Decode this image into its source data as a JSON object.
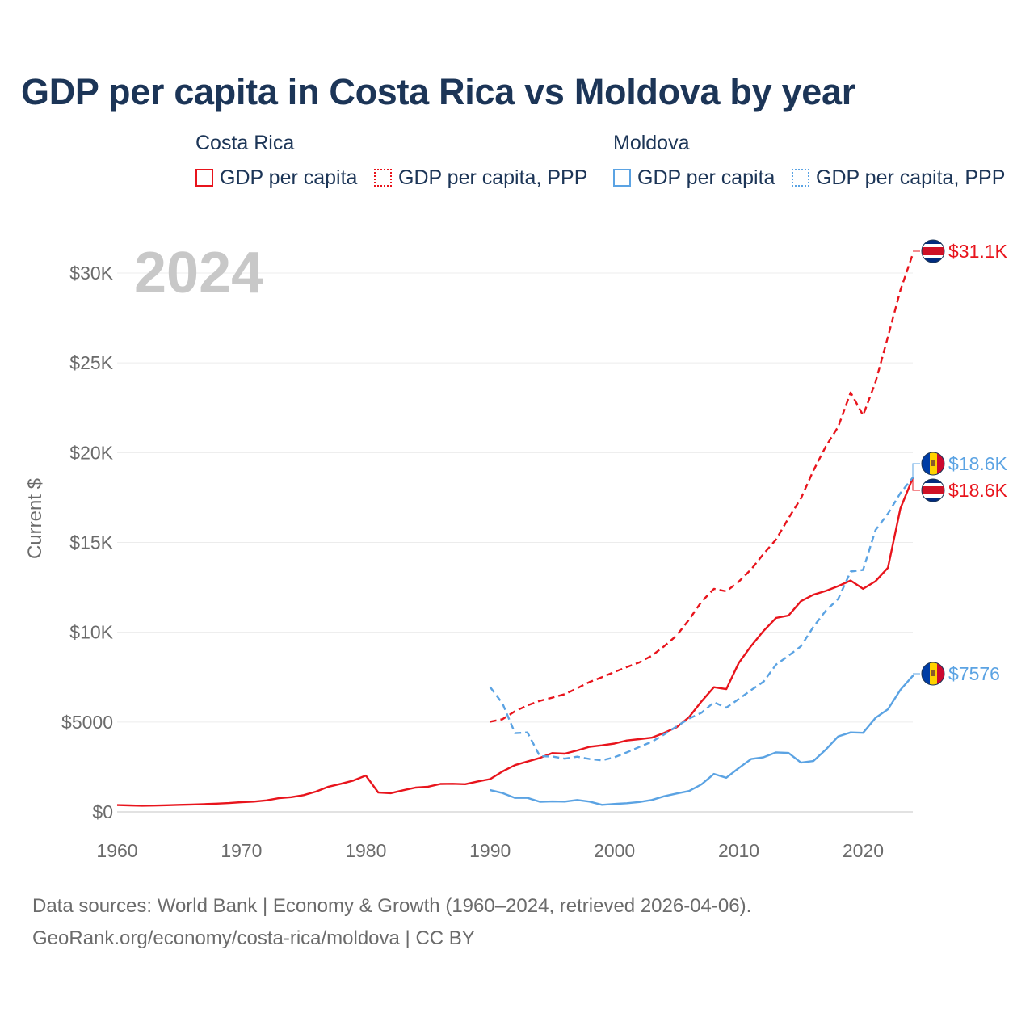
{
  "title": "GDP per capita in Costa Rica vs Moldova by year",
  "legend": {
    "groups": [
      {
        "name": "Costa Rica",
        "items": [
          "GDP per capita",
          "GDP per capita, PPP"
        ]
      },
      {
        "name": "Moldova",
        "items": [
          "GDP per capita",
          "GDP per capita, PPP"
        ]
      }
    ]
  },
  "year_watermark": "2024",
  "footer": {
    "line1": "Data sources: World Bank | Economy & Growth (1960–2024, retrieved 2026-04-06).",
    "line2": "GeoRank.org/economy/costa-rica/moldova | CC BY"
  },
  "colors": {
    "costa_rica": "#e8141c",
    "moldova": "#5ba3e3",
    "title": "#1c3557",
    "axis_text": "#6b6b6b",
    "watermark": "#c8c8c8"
  },
  "chart_data": {
    "type": "line",
    "title": "GDP per capita in Costa Rica vs Moldova by year",
    "xlabel": "",
    "ylabel": "Current $",
    "xlim": [
      1960,
      2024
    ],
    "ylim": [
      0,
      32000
    ],
    "x_ticks": [
      1960,
      1970,
      1980,
      1990,
      2000,
      2010,
      2020
    ],
    "y_ticks": [
      0,
      5000,
      10000,
      15000,
      20000,
      25000,
      30000
    ],
    "y_tick_labels": [
      "$0",
      "$5000",
      "$10K",
      "$15K",
      "$20K",
      "$25K",
      "$30K"
    ],
    "series": [
      {
        "name": "Costa Rica GDP per capita",
        "country": "Costa Rica",
        "style": "solid",
        "color": "#e8141c",
        "end_label": "$18.6K",
        "points": [
          [
            1960,
            380
          ],
          [
            1961,
            360
          ],
          [
            1962,
            340
          ],
          [
            1963,
            350
          ],
          [
            1964,
            370
          ],
          [
            1965,
            390
          ],
          [
            1966,
            410
          ],
          [
            1967,
            430
          ],
          [
            1968,
            460
          ],
          [
            1969,
            490
          ],
          [
            1970,
            540
          ],
          [
            1971,
            570
          ],
          [
            1972,
            640
          ],
          [
            1973,
            760
          ],
          [
            1974,
            820
          ],
          [
            1975,
            930
          ],
          [
            1976,
            1130
          ],
          [
            1977,
            1400
          ],
          [
            1978,
            1560
          ],
          [
            1979,
            1740
          ],
          [
            1980,
            2020
          ],
          [
            1981,
            1080
          ],
          [
            1982,
            1040
          ],
          [
            1983,
            1200
          ],
          [
            1984,
            1350
          ],
          [
            1985,
            1400
          ],
          [
            1986,
            1550
          ],
          [
            1987,
            1560
          ],
          [
            1988,
            1540
          ],
          [
            1989,
            1690
          ],
          [
            1990,
            1820
          ],
          [
            1991,
            2250
          ],
          [
            1992,
            2600
          ],
          [
            1993,
            2800
          ],
          [
            1994,
            3000
          ],
          [
            1995,
            3270
          ],
          [
            1996,
            3240
          ],
          [
            1997,
            3420
          ],
          [
            1998,
            3620
          ],
          [
            1999,
            3700
          ],
          [
            2000,
            3800
          ],
          [
            2001,
            3970
          ],
          [
            2002,
            4050
          ],
          [
            2003,
            4130
          ],
          [
            2004,
            4400
          ],
          [
            2005,
            4710
          ],
          [
            2006,
            5270
          ],
          [
            2007,
            6150
          ],
          [
            2008,
            6940
          ],
          [
            2009,
            6830
          ],
          [
            2010,
            8290
          ],
          [
            2011,
            9240
          ],
          [
            2012,
            10080
          ],
          [
            2013,
            10800
          ],
          [
            2014,
            10930
          ],
          [
            2015,
            11730
          ],
          [
            2016,
            12090
          ],
          [
            2017,
            12300
          ],
          [
            2018,
            12570
          ],
          [
            2019,
            12880
          ],
          [
            2020,
            12420
          ],
          [
            2021,
            12840
          ],
          [
            2022,
            13590
          ],
          [
            2023,
            16890
          ],
          [
            2024,
            18590
          ]
        ]
      },
      {
        "name": "Costa Rica GDP per capita, PPP",
        "country": "Costa Rica",
        "style": "dashed",
        "color": "#e8141c",
        "end_label": "$31.1K",
        "points": [
          [
            1990,
            5020
          ],
          [
            1991,
            5160
          ],
          [
            1992,
            5600
          ],
          [
            1993,
            5930
          ],
          [
            1994,
            6180
          ],
          [
            1995,
            6360
          ],
          [
            1996,
            6550
          ],
          [
            1997,
            6880
          ],
          [
            1998,
            7230
          ],
          [
            1999,
            7500
          ],
          [
            2000,
            7790
          ],
          [
            2001,
            8060
          ],
          [
            2002,
            8320
          ],
          [
            2003,
            8690
          ],
          [
            2004,
            9220
          ],
          [
            2005,
            9820
          ],
          [
            2006,
            10700
          ],
          [
            2007,
            11700
          ],
          [
            2008,
            12420
          ],
          [
            2009,
            12280
          ],
          [
            2010,
            12820
          ],
          [
            2011,
            13500
          ],
          [
            2012,
            14370
          ],
          [
            2013,
            15160
          ],
          [
            2014,
            16350
          ],
          [
            2015,
            17450
          ],
          [
            2016,
            19000
          ],
          [
            2017,
            20350
          ],
          [
            2018,
            21450
          ],
          [
            2019,
            23350
          ],
          [
            2020,
            22080
          ],
          [
            2021,
            23920
          ],
          [
            2022,
            26450
          ],
          [
            2023,
            29040
          ],
          [
            2024,
            31060
          ]
        ]
      },
      {
        "name": "Moldova GDP per capita",
        "country": "Moldova",
        "style": "solid",
        "color": "#5ba3e3",
        "end_label": "$7576",
        "points": [
          [
            1990,
            1210
          ],
          [
            1991,
            1050
          ],
          [
            1992,
            780
          ],
          [
            1993,
            780
          ],
          [
            1994,
            560
          ],
          [
            1995,
            580
          ],
          [
            1996,
            570
          ],
          [
            1997,
            660
          ],
          [
            1998,
            570
          ],
          [
            1999,
            390
          ],
          [
            2000,
            440
          ],
          [
            2001,
            480
          ],
          [
            2002,
            550
          ],
          [
            2003,
            660
          ],
          [
            2004,
            870
          ],
          [
            2005,
            1020
          ],
          [
            2006,
            1160
          ],
          [
            2007,
            1530
          ],
          [
            2008,
            2110
          ],
          [
            2009,
            1900
          ],
          [
            2010,
            2440
          ],
          [
            2011,
            2940
          ],
          [
            2012,
            3040
          ],
          [
            2013,
            3310
          ],
          [
            2014,
            3280
          ],
          [
            2015,
            2740
          ],
          [
            2016,
            2830
          ],
          [
            2017,
            3470
          ],
          [
            2018,
            4200
          ],
          [
            2019,
            4420
          ],
          [
            2020,
            4400
          ],
          [
            2021,
            5230
          ],
          [
            2022,
            5710
          ],
          [
            2023,
            6790
          ],
          [
            2024,
            7576
          ]
        ]
      },
      {
        "name": "Moldova GDP per capita, PPP",
        "country": "Moldova",
        "style": "dashed",
        "color": "#5ba3e3",
        "end_label": "$18.6K",
        "points": [
          [
            1990,
            6950
          ],
          [
            1991,
            6030
          ],
          [
            1992,
            4380
          ],
          [
            1993,
            4420
          ],
          [
            1994,
            3100
          ],
          [
            1995,
            3080
          ],
          [
            1996,
            2960
          ],
          [
            1997,
            3070
          ],
          [
            1998,
            2940
          ],
          [
            1999,
            2870
          ],
          [
            2000,
            3040
          ],
          [
            2001,
            3310
          ],
          [
            2002,
            3610
          ],
          [
            2003,
            3900
          ],
          [
            2004,
            4310
          ],
          [
            2005,
            4760
          ],
          [
            2006,
            5190
          ],
          [
            2007,
            5520
          ],
          [
            2008,
            6100
          ],
          [
            2009,
            5800
          ],
          [
            2010,
            6280
          ],
          [
            2011,
            6780
          ],
          [
            2012,
            7250
          ],
          [
            2013,
            8200
          ],
          [
            2014,
            8690
          ],
          [
            2015,
            9220
          ],
          [
            2016,
            10300
          ],
          [
            2017,
            11200
          ],
          [
            2018,
            11860
          ],
          [
            2019,
            13380
          ],
          [
            2020,
            13470
          ],
          [
            2021,
            15690
          ],
          [
            2022,
            16600
          ],
          [
            2023,
            17750
          ],
          [
            2024,
            18610
          ]
        ]
      }
    ]
  }
}
